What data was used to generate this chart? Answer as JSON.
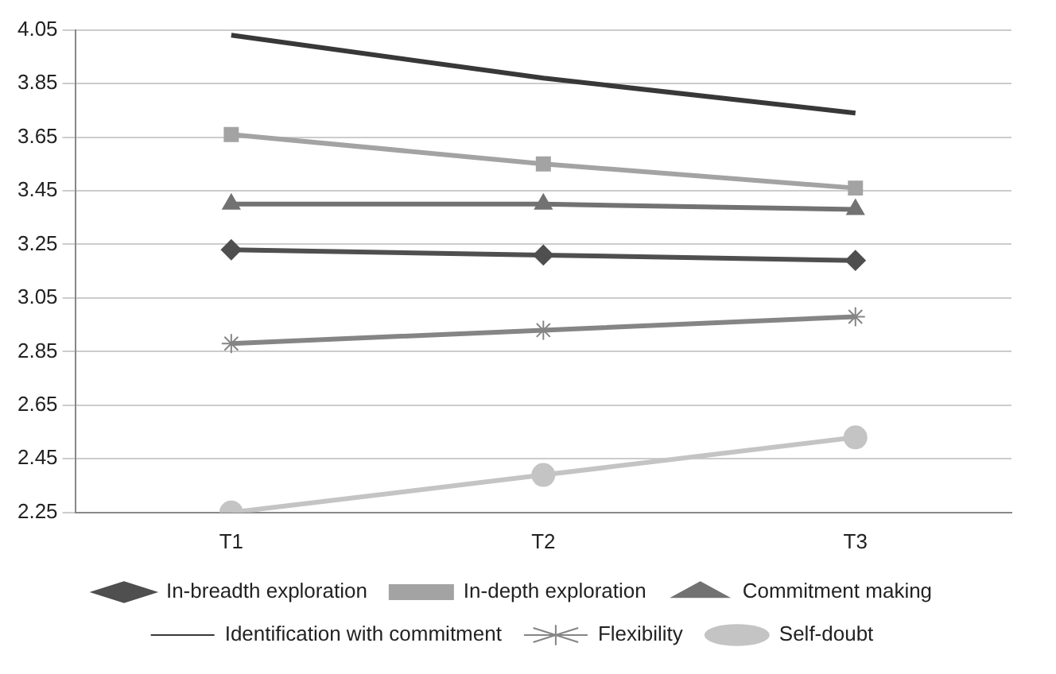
{
  "chart_data": {
    "type": "line",
    "categories": [
      "T1",
      "T2",
      "T3"
    ],
    "series": [
      {
        "name": "In-breadth exploration",
        "color": "#4f4f4f",
        "marker": "diamond",
        "values": [
          3.23,
          3.21,
          3.19
        ]
      },
      {
        "name": "In-depth exploration",
        "color": "#a3a3a3",
        "marker": "square",
        "values": [
          3.66,
          3.55,
          3.46
        ]
      },
      {
        "name": "Commitment making",
        "color": "#727272",
        "marker": "triangle",
        "values": [
          3.4,
          3.4,
          3.38
        ]
      },
      {
        "name": "Identification with commitment",
        "color": "#383838",
        "marker": "none",
        "values": [
          4.03,
          3.87,
          3.74
        ]
      },
      {
        "name": "Flexibility",
        "color": "#858585",
        "marker": "cross",
        "values": [
          2.88,
          2.93,
          2.98
        ]
      },
      {
        "name": "Self-doubt",
        "color": "#c4c4c4",
        "marker": "circle",
        "values": [
          2.25,
          2.39,
          2.53
        ]
      }
    ],
    "ylim": [
      2.25,
      4.05
    ],
    "yticks": [
      2.25,
      2.45,
      2.65,
      2.85,
      3.05,
      3.25,
      3.45,
      3.65,
      3.85,
      4.05
    ],
    "grid": "y",
    "legend": "bottom",
    "line_style": "solid"
  }
}
